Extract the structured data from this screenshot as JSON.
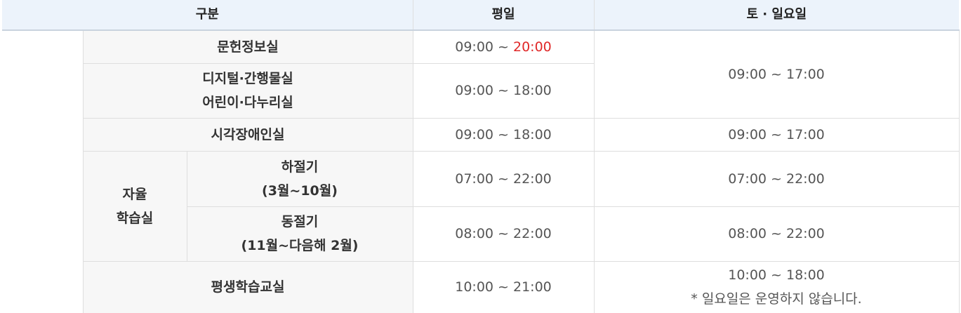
{
  "header": {
    "category": "구분",
    "weekday": "평일",
    "weekend": "토 · 일요일"
  },
  "rows": {
    "r1": {
      "name": "문헌정보실",
      "weekday_start": "09:00 ~ ",
      "weekday_end": "20:00"
    },
    "r2": {
      "name_line1": "디지털·간행물실",
      "name_line2": "어린이·다누리실",
      "weekday": "09:00 ~ 18:00"
    },
    "shared_weekend": "09:00 ~ 17:00",
    "r3": {
      "name": "시각장애인실",
      "weekday": "09:00 ~ 18:00",
      "weekend": "09:00 ~ 17:00"
    },
    "study": {
      "group_line1": "자율",
      "group_line2": "학습실",
      "summer": {
        "name_line1": "하절기",
        "name_line2": "(3월~10월)",
        "weekday": "07:00 ~ 22:00",
        "weekend": "07:00 ~ 22:00"
      },
      "winter": {
        "name_line1": "동절기",
        "name_line2": "(11월~다음해 2월)",
        "weekday": "08:00 ~ 22:00",
        "weekend": "08:00 ~ 22:00"
      }
    },
    "r6": {
      "name": "평생학습교실",
      "weekday": "10:00 ~ 21:00",
      "weekend": "10:00 ~ 18:00",
      "weekend_note": "* 일요일은 운영하지 않습니다."
    }
  },
  "colors": {
    "header_bg": "#ecf3fb",
    "category_bg": "#f7f7f7",
    "accent": "#e02828",
    "border": "#dedede"
  }
}
